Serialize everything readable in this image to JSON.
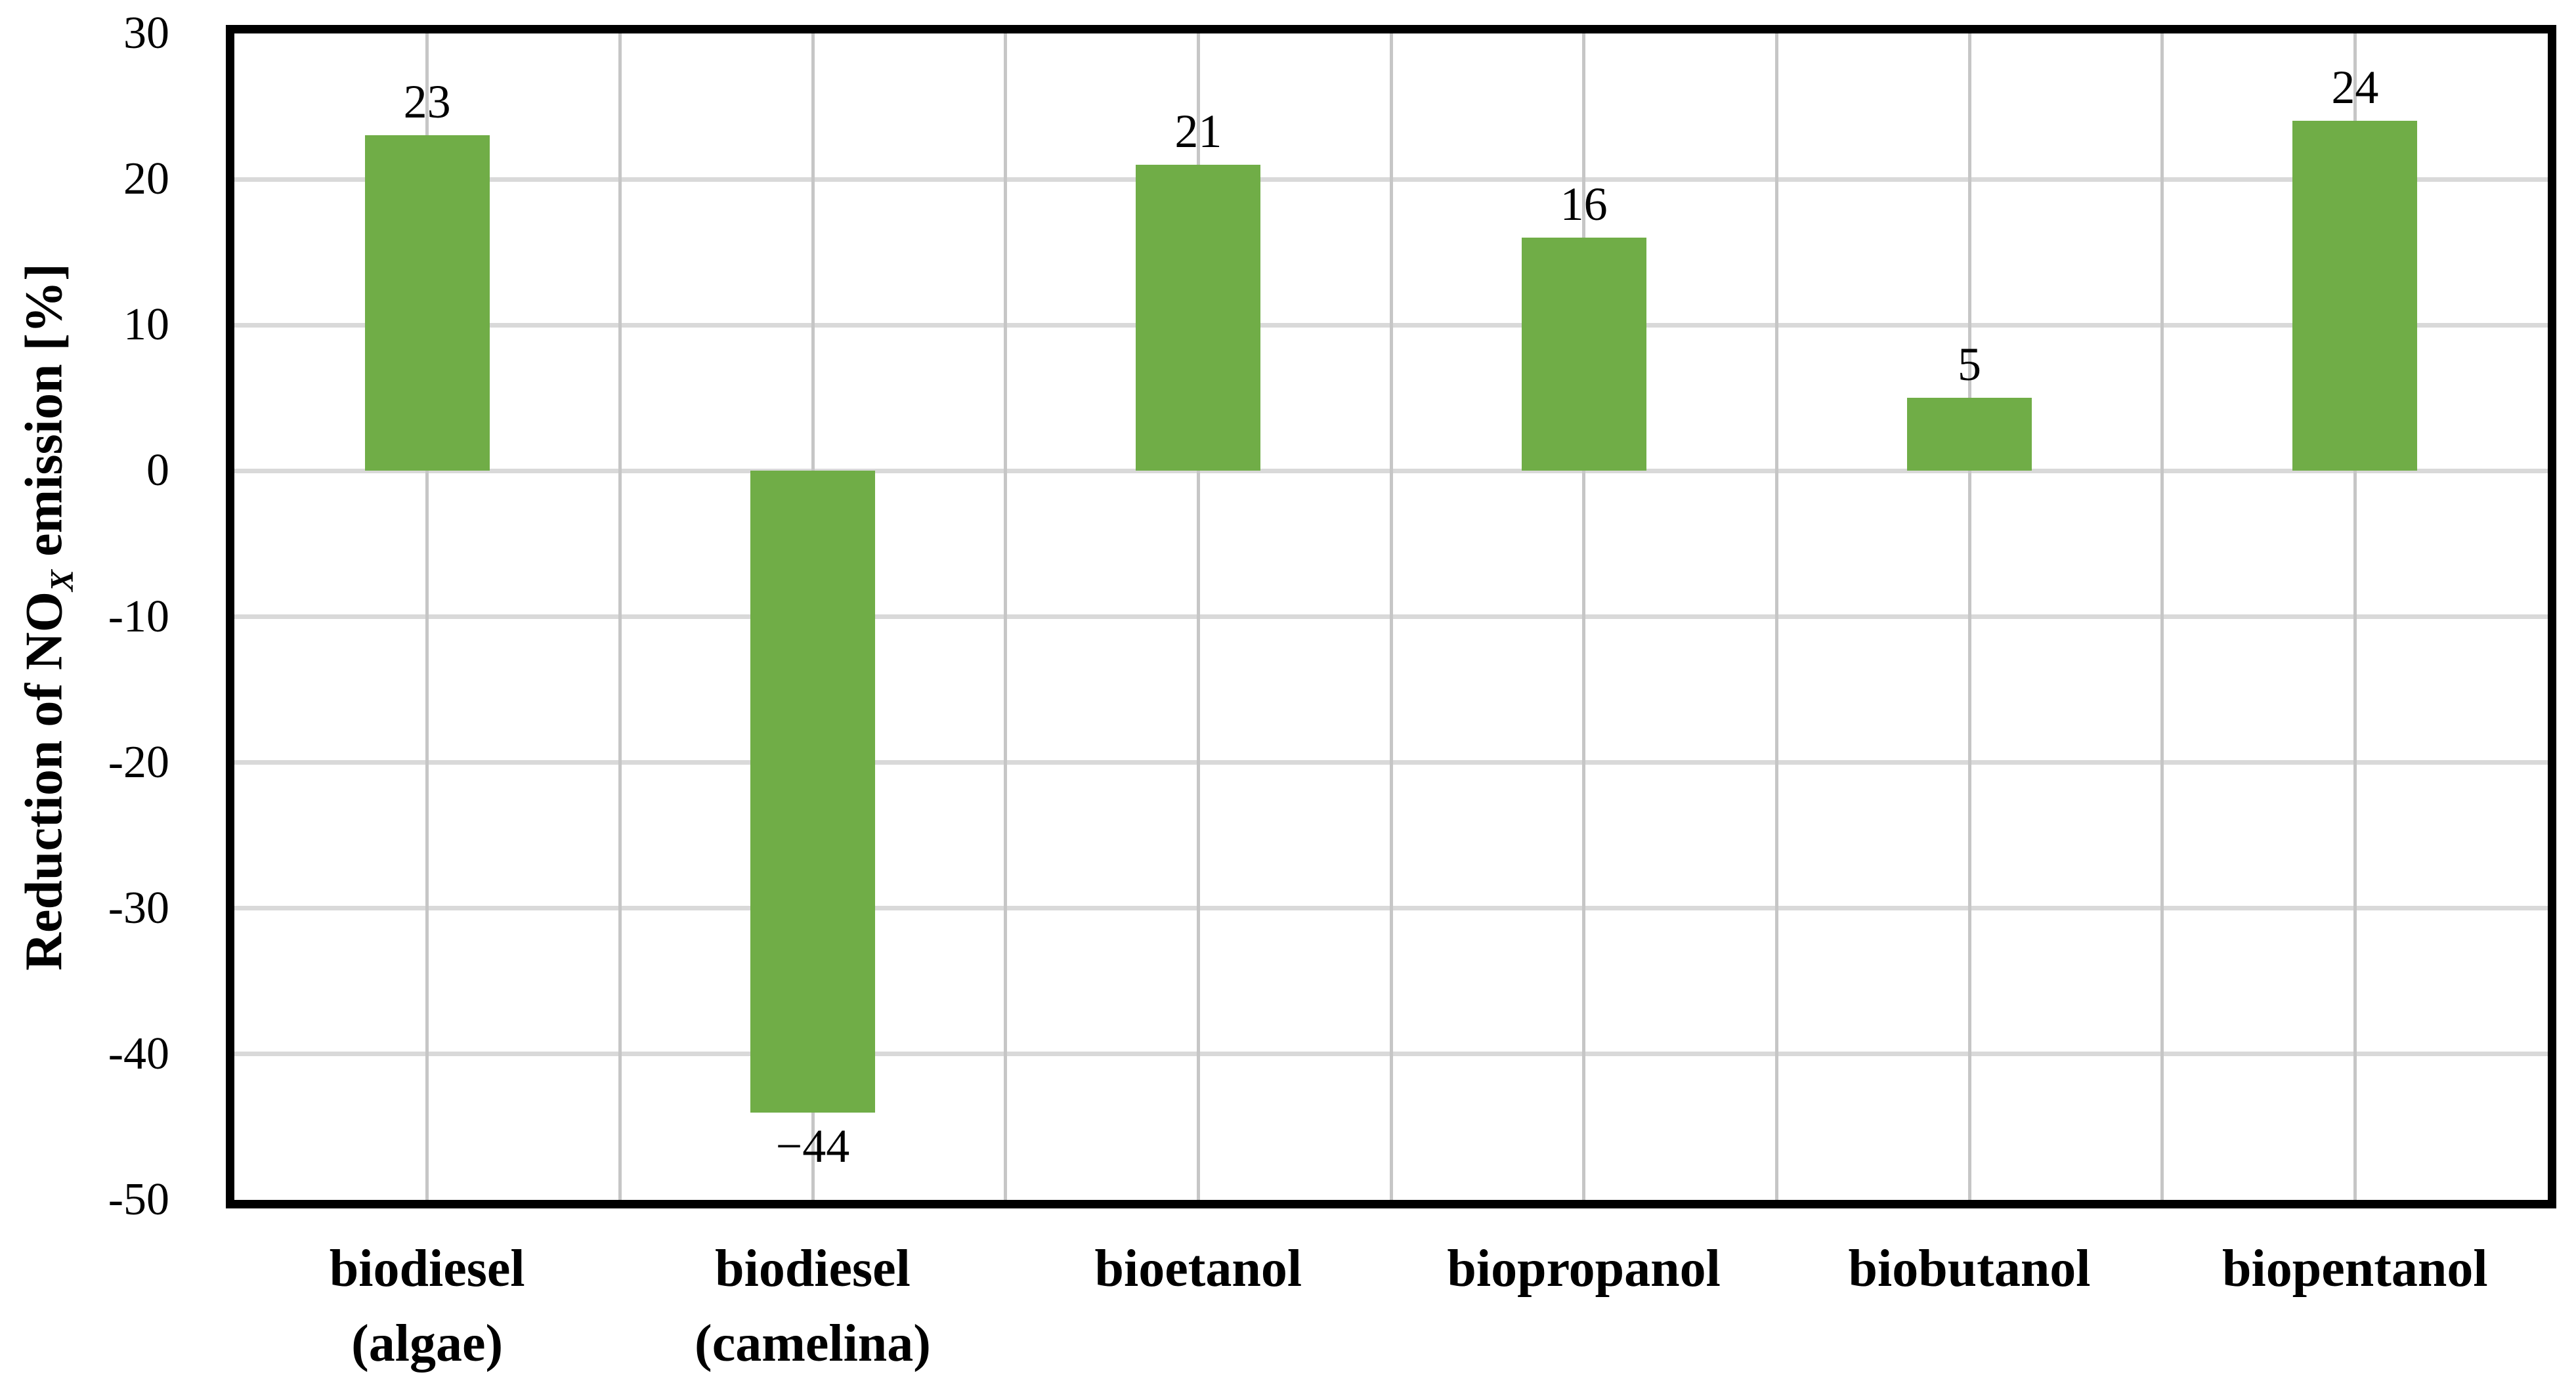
{
  "figure": {
    "kind": "excel-style bar chart from scientific paper",
    "background_color": "#ffffff"
  },
  "chart_data": {
    "type": "bar",
    "title": "",
    "xlabel": "",
    "ylabel": "Reduction of NOX emission [%]",
    "ylabel_parts": {
      "prefix": "Reduction of NO",
      "sub": "X",
      "suffix": " emission [%]"
    },
    "categories": [
      [
        "biodiesel",
        "(algae)"
      ],
      [
        "biodiesel",
        "(camelina)"
      ],
      [
        "bioetanol"
      ],
      [
        "biopropanol"
      ],
      [
        "biobutanol"
      ],
      [
        "biopentanol"
      ]
    ],
    "values": [
      23,
      -44,
      21,
      16,
      5,
      24
    ],
    "data_labels": [
      "23",
      "−44",
      "21",
      "16",
      "5",
      "24"
    ],
    "ylim": [
      -50,
      30
    ],
    "ytick_step": 10,
    "yticks": [
      "30",
      "20",
      "10",
      "0",
      "-10",
      "-20",
      "-30",
      "-40",
      "-50"
    ],
    "ytick_values": [
      30,
      20,
      10,
      0,
      -10,
      -20,
      -30,
      -40,
      -50
    ],
    "grid": "horizontal and vertical gridlines, vertical at category centers and boundaries",
    "legend": "none",
    "colors": {
      "bar_fill": "#70AD47",
      "hgrid": "#D9D9D9",
      "vgrid": "#C6C6C6",
      "axis_border": "#000000",
      "text": "#000000"
    }
  }
}
